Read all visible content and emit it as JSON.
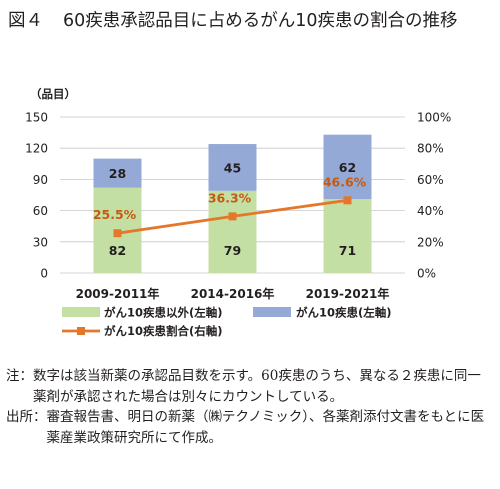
{
  "figure": {
    "label": "図４",
    "title": "60疾患承認品目に占めるがん10疾患の割合の推移"
  },
  "chart_data": {
    "type": "bar",
    "stacked": true,
    "categories": [
      "2009-2011年",
      "2014-2016年",
      "2019-2021年"
    ],
    "series": [
      {
        "name": "がん10疾患以外(左軸)",
        "values": [
          82,
          79,
          71
        ],
        "color": "#c4dfa3",
        "axis": "left"
      },
      {
        "name": "がん10疾患(左軸)",
        "values": [
          28,
          45,
          62
        ],
        "color": "#94a9d6",
        "axis": "left"
      }
    ],
    "line_series": {
      "name": "がん10疾患割合(右軸)",
      "values": [
        25.5,
        36.3,
        46.6
      ],
      "labels": [
        "25.5%",
        "36.3%",
        "46.6%"
      ],
      "color": "#e4772a",
      "label_color": "#c55a11",
      "axis": "right"
    },
    "ylabel_left": "（品目）",
    "ylim_left": [
      0,
      150
    ],
    "yticks_left": [
      "150",
      "120",
      "90",
      "60",
      "30",
      "0"
    ],
    "ylim_right": [
      0,
      100
    ],
    "yticks_right": [
      "100%",
      "80%",
      "60%",
      "40%",
      "20%",
      "0%"
    ],
    "grid": true,
    "legend_position": "bottom"
  },
  "notes": [
    {
      "label": "注：",
      "text": "数字は該当新薬の承認品目数を示す。60疾患のうち、異なる２疾患に同一薬剤が承認された場合は別々にカウントしている。"
    },
    {
      "label": "出所：",
      "text": "審査報告書、明日の新薬（㈱テクノミック）、各薬剤添付文書をもとに医薬産業政策研究所にて作成。"
    }
  ]
}
